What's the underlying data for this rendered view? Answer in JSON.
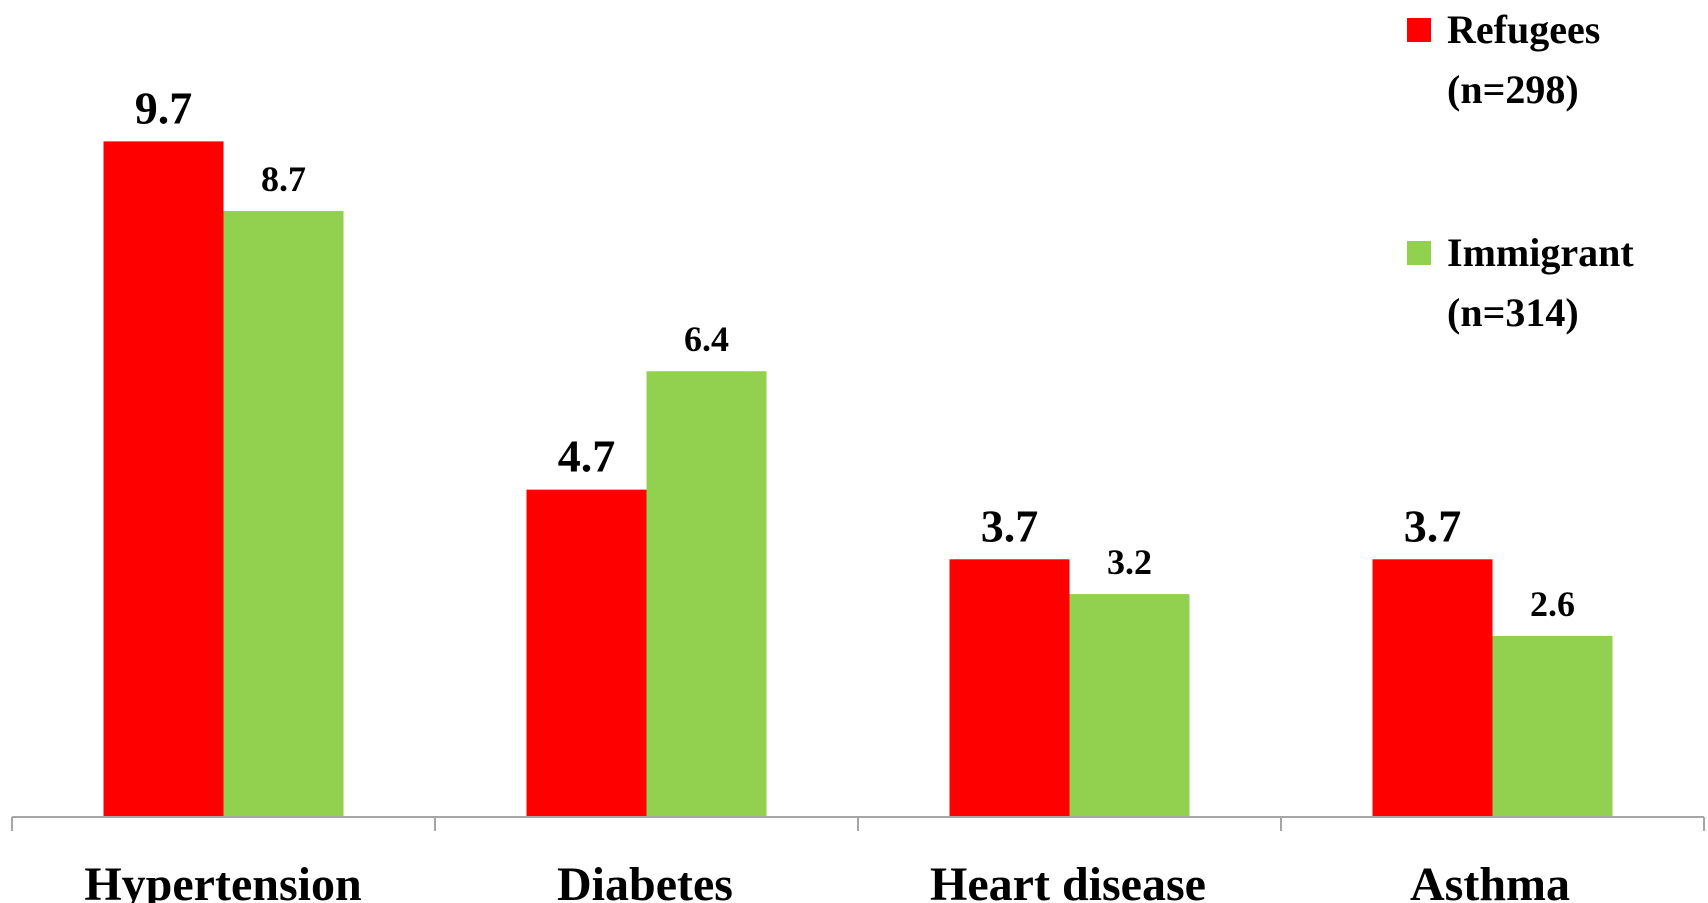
{
  "chart_data": {
    "type": "bar",
    "categories": [
      "Hypertension",
      "Diabetes",
      "Heart disease",
      "Asthma"
    ],
    "series": [
      {
        "name": "Refugees (n=298)",
        "legend_lines": [
          "Refugees",
          "(n=298)"
        ],
        "color": "#ff0000",
        "label_color": "#ff0000",
        "values": [
          9.7,
          4.7,
          3.7,
          3.7
        ]
      },
      {
        "name": "Immigrant (n=314)",
        "legend_lines": [
          "Immigrant",
          "(n=314)"
        ],
        "color": "#92d050",
        "label_color": "#000000",
        "values": [
          8.7,
          6.4,
          3.2,
          2.6
        ]
      }
    ],
    "value_labels": {
      "s0": [
        "9.7",
        "4.7",
        "3.7",
        "3.7"
      ],
      "s1": [
        "8.7",
        "6.4",
        "3.2",
        "2.6"
      ]
    },
    "title": "",
    "xlabel": "",
    "ylabel": "",
    "ylim": [
      0,
      11.73
    ],
    "grid": false,
    "legend_position": "top-right",
    "axis_color": "#a6a6a6"
  }
}
